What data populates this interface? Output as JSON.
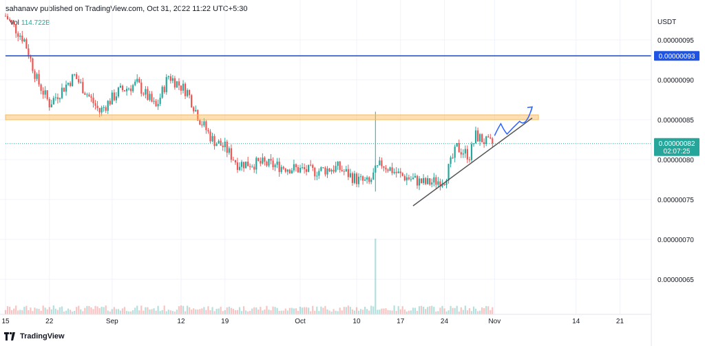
{
  "header": {
    "publisher_text": "sahanavv published on TradingView.com, Oct 31, 2022 11:22 UTC+5:30"
  },
  "volume_legend": {
    "label": "Vol",
    "value": "114.722B"
  },
  "footer": {
    "brand": "TradingView"
  },
  "price_axis": {
    "currency": "USDT"
  },
  "colors": {
    "up": "#26a69a",
    "down": "#ef5350",
    "resistance_line": "#1e53e5",
    "support_zone": "#ffb74d",
    "trendline": "#555555",
    "arrow": "#2962ff"
  },
  "chart_data": {
    "type": "candlestick",
    "symbol_quote": "USDT",
    "y_ticks": [
      "0.00000095",
      "0.00000090",
      "0.00000085",
      "0.00000080",
      "0.00000075",
      "0.00000070",
      "0.00000065"
    ],
    "y_tick_values": [
      95,
      90,
      85,
      80,
      75,
      70,
      65
    ],
    "y_unit_scale": 1e-08,
    "ylim": [
      60.6,
      100.0
    ],
    "x_ticks": [
      "15",
      "22",
      "Sep",
      "12",
      "19",
      "Oct",
      "10",
      "17",
      "24",
      "Nov",
      "14",
      "21"
    ],
    "x_tick_dates": [
      "2022-08-15",
      "2022-08-22",
      "2022-09-01",
      "2022-09-12",
      "2022-09-19",
      "2022-10-01",
      "2022-10-10",
      "2022-10-17",
      "2022-10-24",
      "2022-11-01",
      "2022-11-14",
      "2022-11-21"
    ],
    "x_range_dates": [
      "2022-08-15",
      "2022-11-26"
    ],
    "price_series": [
      {
        "date": "2022-08-15",
        "close": 98.0
      },
      {
        "date": "2022-08-18",
        "close": 95.0
      },
      {
        "date": "2022-08-20",
        "close": 90.0
      },
      {
        "date": "2022-08-22",
        "close": 87.0
      },
      {
        "date": "2022-08-26",
        "close": 90.5
      },
      {
        "date": "2022-08-30",
        "close": 86.0
      },
      {
        "date": "2022-09-02",
        "close": 88.5
      },
      {
        "date": "2022-09-05",
        "close": 89.5
      },
      {
        "date": "2022-09-08",
        "close": 86.5
      },
      {
        "date": "2022-09-10",
        "close": 90.5
      },
      {
        "date": "2022-09-13",
        "close": 88.5
      },
      {
        "date": "2022-09-15",
        "close": 85.0
      },
      {
        "date": "2022-09-17",
        "close": 82.5
      },
      {
        "date": "2022-09-19",
        "close": 81.5
      },
      {
        "date": "2022-09-21",
        "close": 79.5
      },
      {
        "date": "2022-09-25",
        "close": 79.5
      },
      {
        "date": "2022-09-29",
        "close": 79.0
      },
      {
        "date": "2022-10-03",
        "close": 78.5
      },
      {
        "date": "2022-10-07",
        "close": 79.0
      },
      {
        "date": "2022-10-10",
        "close": 77.5
      },
      {
        "date": "2022-10-12",
        "close": 77.0
      },
      {
        "date": "2022-10-13",
        "close": 78.5
      },
      {
        "date": "2022-10-14",
        "close": 79.5
      },
      {
        "date": "2022-10-17",
        "close": 78.0
      },
      {
        "date": "2022-10-21",
        "close": 77.0
      },
      {
        "date": "2022-10-24",
        "close": 77.5
      },
      {
        "date": "2022-10-26",
        "close": 81.5
      },
      {
        "date": "2022-10-28",
        "close": 80.5
      },
      {
        "date": "2022-10-29",
        "close": 83.0
      },
      {
        "date": "2022-10-30",
        "close": 82.5
      },
      {
        "date": "2022-10-31",
        "close": 82.0
      }
    ],
    "resistance_level": 93.0,
    "support_zone": [
      85.0,
      85.6
    ],
    "current_price_level": 82.0,
    "current_price_label": "0.00000082",
    "countdown": "02:07:25",
    "resistance_label": "0.00000093",
    "trendline": [
      {
        "date": "2022-10-19",
        "price": 74.2
      },
      {
        "date": "2022-11-07",
        "price": 85.2
      }
    ],
    "projection_arrow": [
      {
        "date": "2022-11-01",
        "price": 83.0
      },
      {
        "date": "2022-11-02",
        "price": 84.5
      },
      {
        "date": "2022-11-03",
        "price": 83.2
      },
      {
        "date": "2022-11-05",
        "price": 84.8
      },
      {
        "date": "2022-11-07",
        "price": 86.6
      }
    ],
    "volume_spike_dates": [
      "2022-10-13"
    ],
    "grid": true
  }
}
